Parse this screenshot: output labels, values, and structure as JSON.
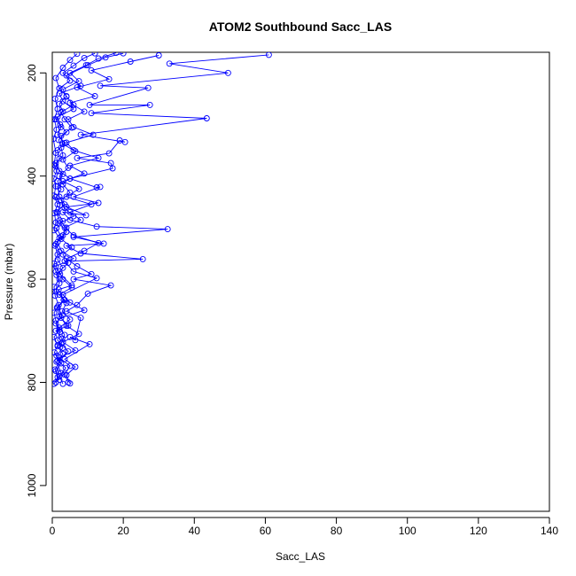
{
  "chart_data": {
    "type": "line",
    "title": "ATOM2 Southbound Sacc_LAS",
    "xlabel": "Sacc_LAS",
    "ylabel": "Pressure (mbar)",
    "xlim": [
      0,
      140
    ],
    "ylim": [
      1050,
      160
    ],
    "y_reversed": true,
    "x_ticks": [
      0,
      20,
      40,
      60,
      80,
      100,
      120,
      140
    ],
    "y_ticks": [
      200,
      400,
      600,
      800,
      1000
    ],
    "grid": false,
    "legend": "none",
    "series_color": "#0000ff",
    "marker": "open-circle",
    "series": [
      {
        "values": [
          [
            1.0,
            800
          ],
          [
            2.5,
            782
          ],
          [
            1.2,
            760
          ],
          [
            3.0,
            745
          ],
          [
            1.5,
            730
          ],
          [
            2.8,
            715
          ],
          [
            1.0,
            700
          ],
          [
            4.5,
            690
          ],
          [
            2.0,
            672
          ],
          [
            1.3,
            655
          ],
          [
            3.2,
            640
          ],
          [
            1.8,
            620
          ],
          [
            5.5,
            612
          ],
          [
            2.2,
            590
          ],
          [
            1.0,
            575
          ],
          [
            6.0,
            560
          ],
          [
            2.5,
            545
          ],
          [
            1.5,
            528
          ],
          [
            3.0,
            515
          ],
          [
            4.0,
            500
          ],
          [
            2.0,
            486
          ],
          [
            1.2,
            470
          ],
          [
            3.5,
            455
          ],
          [
            2.0,
            440
          ],
          [
            1.5,
            420
          ],
          [
            5.0,
            405
          ],
          [
            2.0,
            390
          ],
          [
            1.0,
            375
          ],
          [
            3.0,
            360
          ],
          [
            2.5,
            345
          ],
          [
            1.8,
            330
          ],
          [
            4.0,
            315
          ],
          [
            2.2,
            300
          ],
          [
            1.5,
            285
          ],
          [
            6.0,
            270
          ],
          [
            3.0,
            255
          ],
          [
            2.0,
            240
          ],
          [
            8.0,
            225
          ],
          [
            4.0,
            205
          ],
          [
            10.0,
            185
          ],
          [
            15.0,
            170
          ],
          [
            20.0,
            162
          ]
        ]
      },
      {
        "values": [
          [
            4.5,
            800
          ],
          [
            3.5,
            785
          ],
          [
            5.0,
            768
          ],
          [
            2.0,
            752
          ],
          [
            6.5,
            738
          ],
          [
            3.0,
            722
          ],
          [
            7.5,
            706
          ],
          [
            4.0,
            690
          ],
          [
            2.5,
            675
          ],
          [
            9.0,
            660
          ],
          [
            5.0,
            645
          ],
          [
            3.0,
            630
          ],
          [
            12.5,
            598
          ],
          [
            6.0,
            585
          ],
          [
            3.5,
            565
          ],
          [
            25.5,
            561
          ],
          [
            8.0,
            550
          ],
          [
            4.0,
            535
          ],
          [
            14.5,
            531
          ],
          [
            6.0,
            518
          ],
          [
            32.5,
            503
          ],
          [
            12.5,
            498
          ],
          [
            5.0,
            485
          ],
          [
            3.0,
            470
          ],
          [
            9.5,
            476
          ],
          [
            4.0,
            460
          ],
          [
            13.0,
            452
          ],
          [
            6.0,
            440
          ],
          [
            13.5,
            421
          ],
          [
            12.5,
            422
          ],
          [
            5.0,
            405
          ],
          [
            17.0,
            385
          ],
          [
            16.5,
            375
          ],
          [
            7.0,
            365
          ],
          [
            16.0,
            356
          ],
          [
            19.0,
            331
          ],
          [
            20.5,
            334
          ],
          [
            8.0,
            320
          ],
          [
            43.5,
            288
          ],
          [
            11.0,
            278
          ],
          [
            27.5,
            262
          ],
          [
            10.5,
            262
          ],
          [
            27.0,
            229
          ],
          [
            13.5,
            225
          ],
          [
            49.5,
            200
          ],
          [
            33.0,
            182
          ],
          [
            61.0,
            165
          ]
        ]
      },
      {
        "values": [
          [
            0.5,
            803
          ],
          [
            1.5,
            790
          ],
          [
            0.8,
            775
          ],
          [
            2.0,
            760
          ],
          [
            0.6,
            742
          ],
          [
            1.5,
            728
          ],
          [
            0.5,
            712
          ],
          [
            2.0,
            698
          ],
          [
            1.0,
            680
          ],
          [
            0.5,
            665
          ],
          [
            1.8,
            650
          ],
          [
            0.8,
            632
          ],
          [
            0.5,
            615
          ],
          [
            2.0,
            600
          ],
          [
            1.0,
            585
          ],
          [
            0.5,
            570
          ],
          [
            1.5,
            552
          ],
          [
            0.8,
            535
          ],
          [
            2.0,
            520
          ],
          [
            0.5,
            505
          ],
          [
            1.0,
            490
          ],
          [
            0.6,
            472
          ],
          [
            1.5,
            455
          ],
          [
            0.5,
            438
          ],
          [
            1.0,
            420
          ],
          [
            0.4,
            405
          ],
          [
            1.2,
            390
          ],
          [
            0.5,
            378
          ],
          [
            1.0,
            355
          ],
          [
            0.3,
            328
          ],
          [
            1.2,
            310
          ],
          [
            0.6,
            290
          ],
          [
            1.5,
            270
          ],
          [
            0.8,
            250
          ],
          [
            2.0,
            230
          ],
          [
            1.0,
            210
          ],
          [
            3.0,
            190
          ],
          [
            5.0,
            175
          ],
          [
            7.0,
            163
          ]
        ]
      },
      {
        "values": [
          [
            5.0,
            802
          ],
          [
            4.0,
            786
          ],
          [
            6.5,
            770
          ],
          [
            3.5,
            755
          ],
          [
            10.5,
            726
          ],
          [
            5.0,
            712
          ],
          [
            6.5,
            718
          ],
          [
            8.0,
            675
          ],
          [
            4.0,
            662
          ],
          [
            7.0,
            650
          ],
          [
            10.0,
            628
          ],
          [
            16.5,
            612
          ],
          [
            6.0,
            600
          ],
          [
            11.0,
            590
          ],
          [
            7.0,
            575
          ],
          [
            4.0,
            560
          ],
          [
            9.0,
            545
          ],
          [
            13.0,
            530
          ],
          [
            6.0,
            515
          ],
          [
            3.5,
            500
          ],
          [
            8.0,
            485
          ],
          [
            5.0,
            470
          ],
          [
            11.0,
            455
          ],
          [
            4.0,
            440
          ],
          [
            7.5,
            425
          ],
          [
            3.0,
            410
          ],
          [
            9.0,
            395
          ],
          [
            5.0,
            380
          ],
          [
            13.0,
            365
          ],
          [
            6.0,
            350
          ],
          [
            4.0,
            335
          ],
          [
            11.5,
            320
          ],
          [
            6.0,
            305
          ],
          [
            4.5,
            290
          ],
          [
            9.0,
            275
          ],
          [
            5.0,
            258
          ],
          [
            12.0,
            245
          ],
          [
            7.0,
            228
          ],
          [
            16.0,
            212
          ],
          [
            11.0,
            195
          ],
          [
            22.0,
            178
          ],
          [
            30.0,
            166
          ]
        ]
      },
      {
        "values": [
          [
            3.0,
            803
          ],
          [
            2.0,
            788
          ],
          [
            3.8,
            772
          ],
          [
            1.5,
            758
          ],
          [
            4.5,
            740
          ],
          [
            2.5,
            725
          ],
          [
            3.5,
            708
          ],
          [
            2.0,
            694
          ],
          [
            5.0,
            678
          ],
          [
            2.8,
            662
          ],
          [
            4.0,
            646
          ],
          [
            2.0,
            630
          ],
          [
            5.5,
            616
          ],
          [
            3.0,
            600
          ],
          [
            2.0,
            585
          ],
          [
            4.5,
            568
          ],
          [
            3.0,
            552
          ],
          [
            5.5,
            538
          ],
          [
            2.5,
            522
          ],
          [
            4.0,
            508
          ],
          [
            2.0,
            492
          ],
          [
            6.0,
            478
          ],
          [
            3.5,
            462
          ],
          [
            2.5,
            447
          ],
          [
            5.0,
            432
          ],
          [
            3.0,
            416
          ],
          [
            2.0,
            400
          ],
          [
            4.5,
            384
          ],
          [
            3.0,
            368
          ],
          [
            6.5,
            352
          ],
          [
            3.0,
            338
          ],
          [
            2.5,
            322
          ],
          [
            5.5,
            306
          ],
          [
            3.5,
            290
          ],
          [
            2.5,
            276
          ],
          [
            6.0,
            262
          ],
          [
            4.0,
            246
          ],
          [
            3.0,
            232
          ],
          [
            7.5,
            216
          ],
          [
            5.0,
            200
          ],
          [
            9.5,
            185
          ],
          [
            13.0,
            172
          ],
          [
            18.0,
            161
          ]
        ]
      },
      {
        "values": [
          [
            2.0,
            795
          ],
          [
            1.0,
            778
          ],
          [
            2.5,
            763
          ],
          [
            1.2,
            748
          ],
          [
            3.0,
            733
          ],
          [
            1.5,
            718
          ],
          [
            2.2,
            702
          ],
          [
            1.0,
            686
          ],
          [
            2.8,
            670
          ],
          [
            1.5,
            655
          ],
          [
            3.5,
            640
          ],
          [
            1.0,
            624
          ],
          [
            2.0,
            608
          ],
          [
            1.2,
            592
          ],
          [
            3.0,
            578
          ],
          [
            1.5,
            562
          ],
          [
            2.0,
            547
          ],
          [
            1.0,
            532
          ],
          [
            2.5,
            517
          ],
          [
            1.2,
            501
          ],
          [
            3.0,
            487
          ],
          [
            1.5,
            471
          ],
          [
            2.2,
            456
          ],
          [
            1.0,
            441
          ],
          [
            2.5,
            426
          ],
          [
            1.5,
            410
          ],
          [
            3.0,
            396
          ],
          [
            1.0,
            381
          ],
          [
            2.0,
            366
          ],
          [
            1.5,
            350
          ],
          [
            3.5,
            336
          ],
          [
            1.5,
            320
          ],
          [
            2.5,
            305
          ],
          [
            1.0,
            290
          ],
          [
            3.0,
            275
          ],
          [
            2.0,
            260
          ],
          [
            4.0,
            245
          ],
          [
            2.0,
            230
          ],
          [
            5.0,
            215
          ],
          [
            3.0,
            200
          ],
          [
            6.0,
            186
          ],
          [
            9.0,
            171
          ],
          [
            12.0,
            162
          ]
        ]
      }
    ]
  }
}
